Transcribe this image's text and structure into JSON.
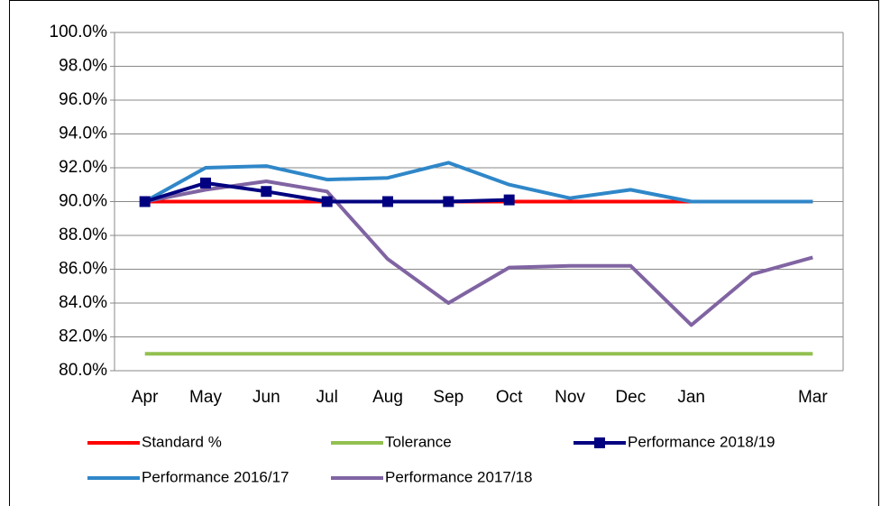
{
  "chart_data": {
    "type": "line",
    "categories": [
      "Apr",
      "May",
      "Jun",
      "Jul",
      "Aug",
      "Sep",
      "Oct",
      "Nov",
      "Dec",
      "Jan",
      null,
      "Mar"
    ],
    "ylim": [
      80,
      100
    ],
    "yticks": [
      {
        "value": 80,
        "label": "80.0%"
      },
      {
        "value": 82,
        "label": "82.0%"
      },
      {
        "value": 84,
        "label": "84.0%"
      },
      {
        "value": 86,
        "label": "86.0%"
      },
      {
        "value": 88,
        "label": "88.0%"
      },
      {
        "value": 90,
        "label": "90.0%"
      },
      {
        "value": 92,
        "label": "92.0%"
      },
      {
        "value": 94,
        "label": "94.0%"
      },
      {
        "value": 96,
        "label": "96.0%"
      },
      {
        "value": 98,
        "label": "98.0%"
      },
      {
        "value": 100,
        "label": "100.0%"
      }
    ],
    "grid": true,
    "series": [
      {
        "name": "Standard %",
        "color": "#ff0000",
        "values": [
          90,
          90,
          90,
          90,
          90,
          90,
          90,
          90,
          90,
          90,
          90,
          90
        ]
      },
      {
        "name": "Tolerance",
        "color": "#92c050",
        "values": [
          81,
          81,
          81,
          81,
          81,
          81,
          81,
          81,
          81,
          81,
          81,
          81
        ]
      },
      {
        "name": "Performance 2018/19",
        "color": "#000080",
        "marker": "square",
        "values": [
          90,
          91.1,
          90.6,
          90,
          90,
          90,
          90.1,
          null,
          null,
          null,
          null,
          null
        ]
      },
      {
        "name": "Performance 2016/17",
        "color": "#2f87c8",
        "values": [
          90,
          92,
          92.1,
          91.3,
          91.4,
          92.3,
          91.0,
          90.2,
          90.7,
          90.0,
          90.0,
          90.0
        ]
      },
      {
        "name": "Performance 2017/18",
        "color": "#8064a2",
        "values": [
          90,
          90.7,
          91.2,
          90.6,
          86.6,
          84.0,
          86.1,
          86.2,
          86.2,
          82.7,
          85.7,
          86.7
        ]
      }
    ]
  }
}
